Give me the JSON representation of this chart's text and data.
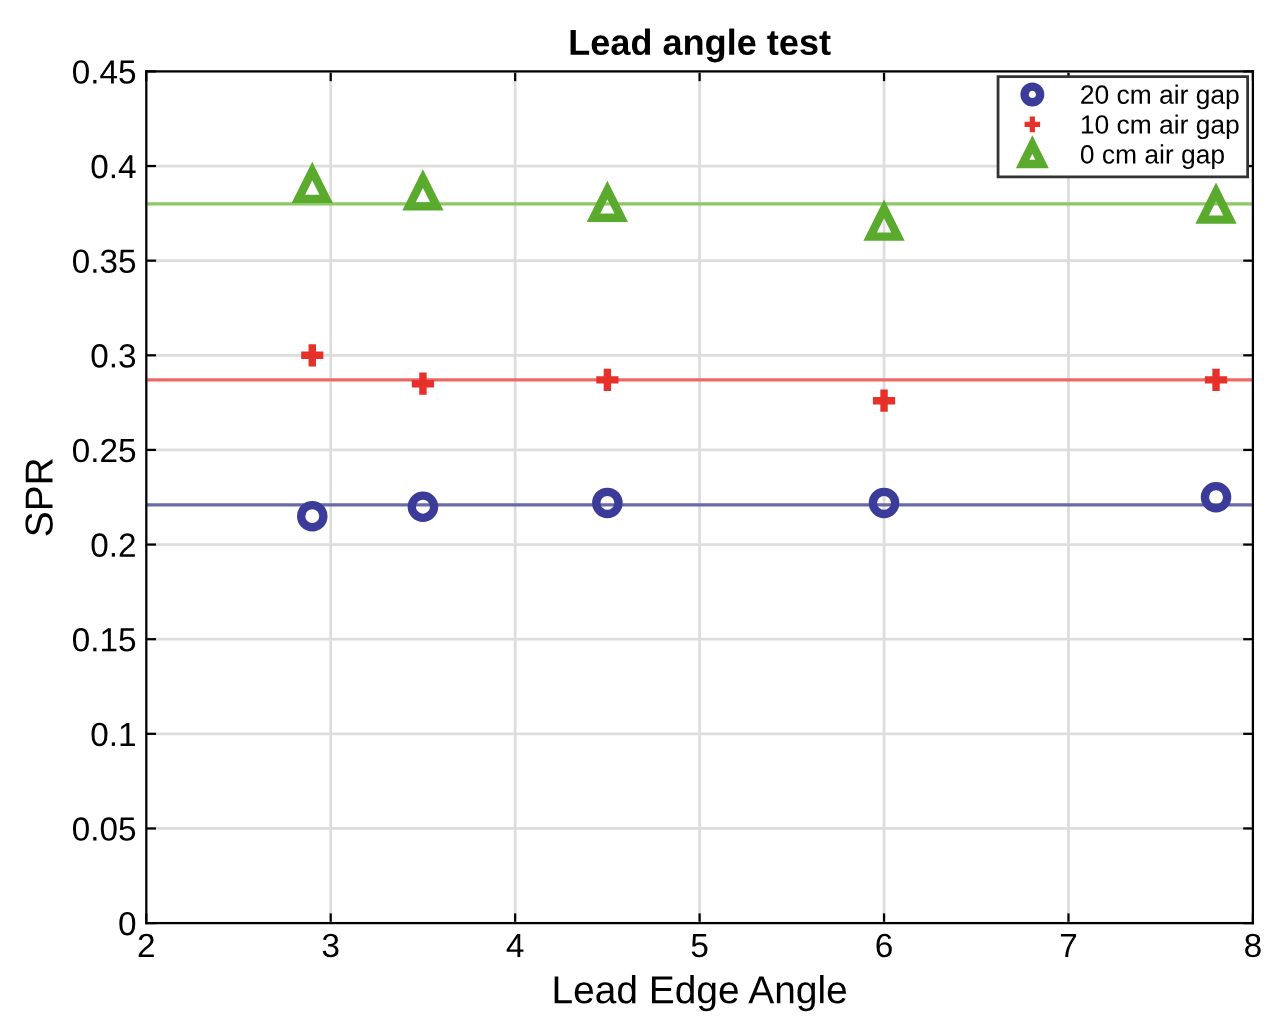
{
  "chart_data": {
    "type": "scatter",
    "title": "Lead angle test",
    "xlabel": "Lead Edge Angle",
    "ylabel": "SPR",
    "x": [
      2.9,
      3.5,
      4.5,
      6,
      7.8
    ],
    "series": [
      {
        "name": "20 cm air gap",
        "color": "#3b3b9a",
        "marker": "circle",
        "values": [
          0.215,
          0.22,
          0.222,
          0.222,
          0.225
        ]
      },
      {
        "name": "10 cm air gap",
        "color": "#e8302a",
        "marker": "cross",
        "values": [
          0.3,
          0.285,
          0.287,
          0.276,
          0.287
        ]
      },
      {
        "name": "0 cm air gap",
        "color": "#5aaa2e",
        "marker": "triangle",
        "values": [
          0.39,
          0.386,
          0.38,
          0.37,
          0.379
        ]
      }
    ],
    "ref_lines": [
      {
        "axis": "y",
        "value": 0.221,
        "color": "#6a6aaa"
      },
      {
        "axis": "y",
        "value": 0.287,
        "color": "#ec6a66"
      },
      {
        "axis": "y",
        "value": 0.38,
        "color": "#8cc865"
      }
    ],
    "xlim": [
      2,
      8
    ],
    "xticks": [
      2,
      3,
      4,
      5,
      6,
      7,
      8
    ],
    "ylim": [
      0,
      0.45
    ],
    "yticks": [
      0,
      0.05,
      0.1,
      0.15,
      0.2,
      0.25,
      0.3,
      0.35,
      0.4,
      0.45
    ],
    "grid": true,
    "legend": "top right"
  }
}
